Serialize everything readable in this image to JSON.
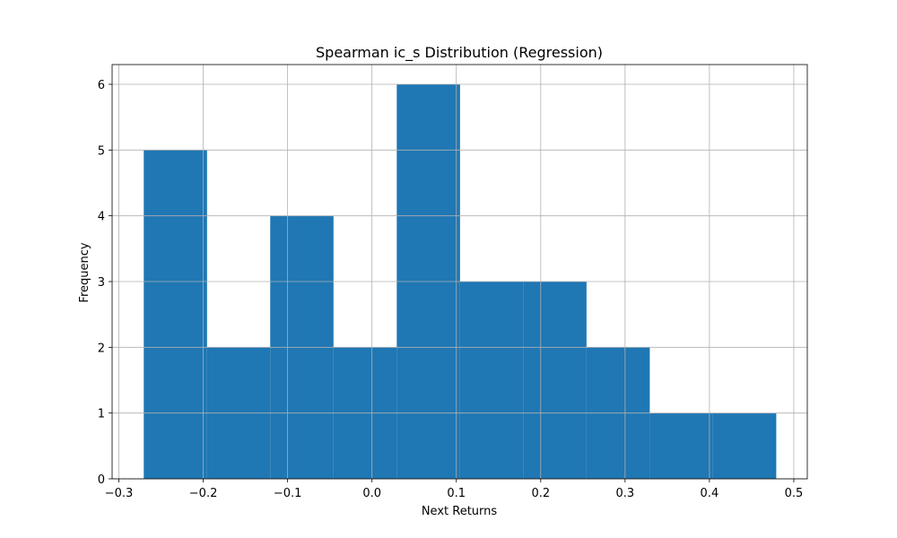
{
  "chart_data": {
    "type": "bar",
    "title": "Spearman ic_s Distribution (Regression)",
    "xlabel": "Next Returns",
    "ylabel": "Frequency",
    "bin_edges": [
      -0.2705,
      -0.1955,
      -0.1206,
      -0.0456,
      0.0294,
      0.1044,
      0.1793,
      0.2543,
      0.3293,
      0.4042,
      0.4792
    ],
    "values": [
      5,
      2,
      4,
      2,
      6,
      3,
      3,
      2,
      1,
      1
    ],
    "xlim": [
      -0.308,
      0.516
    ],
    "ylim": [
      0,
      6.3
    ],
    "xticks": [
      -0.3,
      -0.2,
      -0.1,
      0.0,
      0.1,
      0.2,
      0.3,
      0.4,
      0.5
    ],
    "xtick_labels": [
      "−0.3",
      "−0.2",
      "−0.1",
      "0.0",
      "0.1",
      "0.2",
      "0.3",
      "0.4",
      "0.5"
    ],
    "yticks": [
      0,
      1,
      2,
      3,
      4,
      5,
      6
    ],
    "ytick_labels": [
      "0",
      "1",
      "2",
      "3",
      "4",
      "5",
      "6"
    ],
    "grid": true,
    "bar_color": "#1f77b4",
    "grid_color": "#b0b0b0"
  }
}
